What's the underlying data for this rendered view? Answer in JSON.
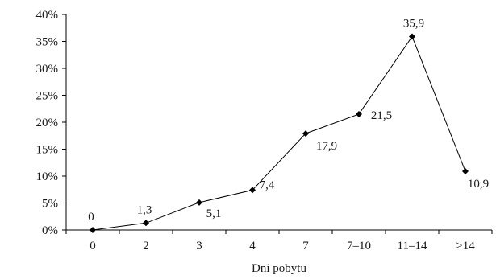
{
  "chart_data": {
    "type": "line",
    "title": "",
    "xlabel": "Dni pobytu",
    "ylabel": "",
    "categories": [
      "0",
      "2",
      "3",
      "4",
      "7",
      "7–10",
      "11–14",
      ">14"
    ],
    "series": [
      {
        "values": [
          0,
          1.3,
          5.1,
          7.4,
          17.9,
          21.5,
          35.9,
          10.9
        ],
        "labels": [
          "0",
          "1,3",
          "5,1",
          "7,4",
          "17,9",
          "21,5",
          "35,9",
          "10,9"
        ],
        "marker": "diamond"
      }
    ],
    "ylim": [
      0,
      40
    ],
    "yticks": [
      0,
      5,
      10,
      15,
      20,
      25,
      30,
      35,
      40
    ],
    "ytick_labels": [
      "0%",
      "5%",
      "10%",
      "15%",
      "20%",
      "25%",
      "30%",
      "35%",
      "40%"
    ],
    "grid": false,
    "legend": "none",
    "colors": {
      "line": "#000000",
      "marker": "#000000",
      "text": "#1a1a1a"
    }
  }
}
